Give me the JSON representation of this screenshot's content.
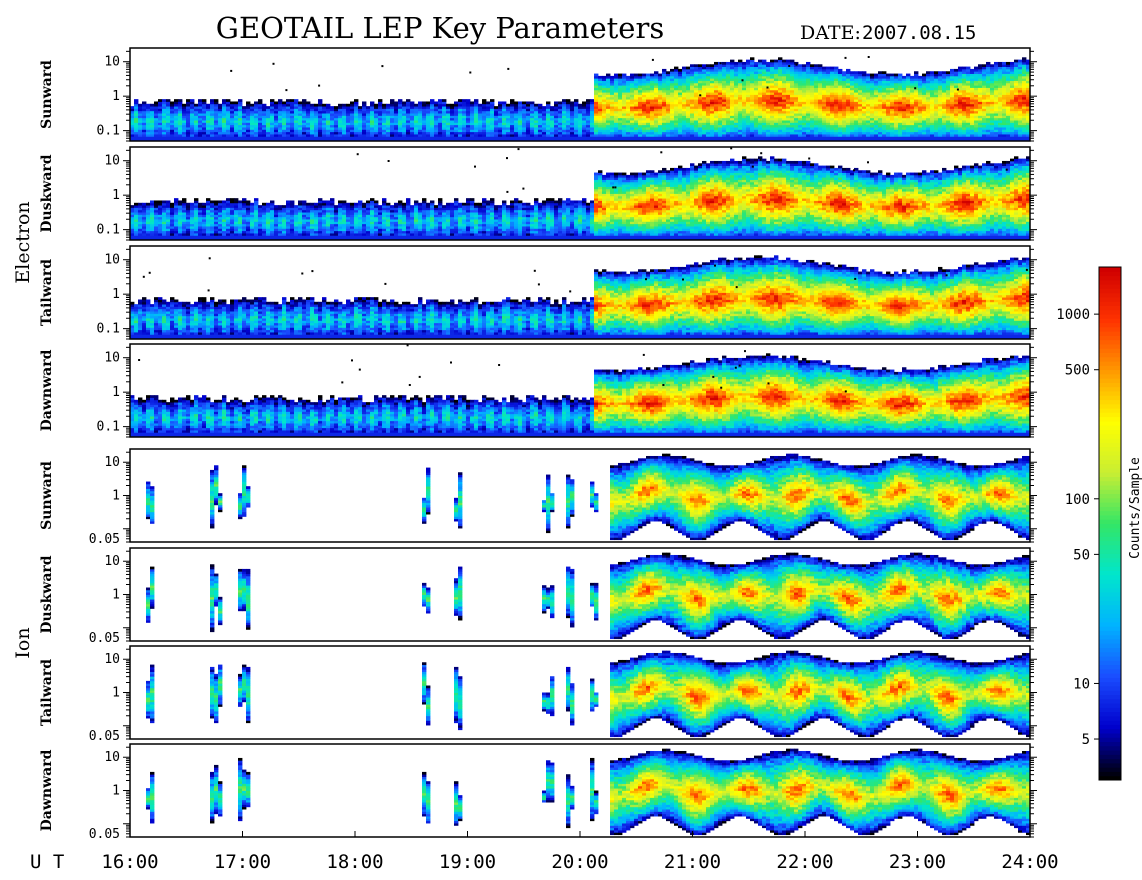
{
  "title": "GEOTAIL LEP Key Parameters",
  "date_label": "DATE:",
  "date_value": "2007.08.15",
  "chart_data": {
    "type": "heatmap",
    "x_axis": {
      "label": "U T",
      "range": [
        "16:00",
        "24:00"
      ],
      "tick_labels": [
        "16:00",
        "17:00",
        "18:00",
        "19:00",
        "20:00",
        "21:00",
        "22:00",
        "23:00",
        "24:00"
      ]
    },
    "groups": [
      {
        "name": "Electron",
        "y_scale": "log",
        "y_range": [
          0.05,
          25
        ],
        "y_tick_labels": [
          "0.1",
          "1",
          "10"
        ],
        "y_tick_values": [
          0.1,
          1,
          10
        ],
        "panels": [
          {
            "name": "Sunward"
          },
          {
            "name": "Duskward"
          },
          {
            "name": "Tailward"
          },
          {
            "name": "Dawnward"
          }
        ]
      },
      {
        "name": "Ion",
        "y_scale": "log",
        "y_range": [
          0.04,
          25
        ],
        "y_tick_labels": [
          "0.05",
          "1",
          "10"
        ],
        "y_tick_values": [
          0.05,
          1,
          10
        ],
        "panels": [
          {
            "name": "Sunward"
          },
          {
            "name": "Duskward"
          },
          {
            "name": "Tailward"
          },
          {
            "name": "Dawnward"
          }
        ]
      }
    ],
    "colorbar": {
      "label": "Counts/Sample",
      "scale": "log",
      "range": [
        3,
        1800
      ],
      "tick_labels": [
        "5",
        "10",
        "50",
        "100",
        "500",
        "1000"
      ],
      "tick_values": [
        5,
        10,
        50,
        100,
        500,
        1000
      ]
    },
    "colormap": [
      "#000000",
      "#0000cc",
      "#1a4dff",
      "#00b3ff",
      "#00e6cc",
      "#33e666",
      "#c8ee33",
      "#ffff00",
      "#ff9900",
      "#ff3300",
      "#d00000"
    ]
  }
}
